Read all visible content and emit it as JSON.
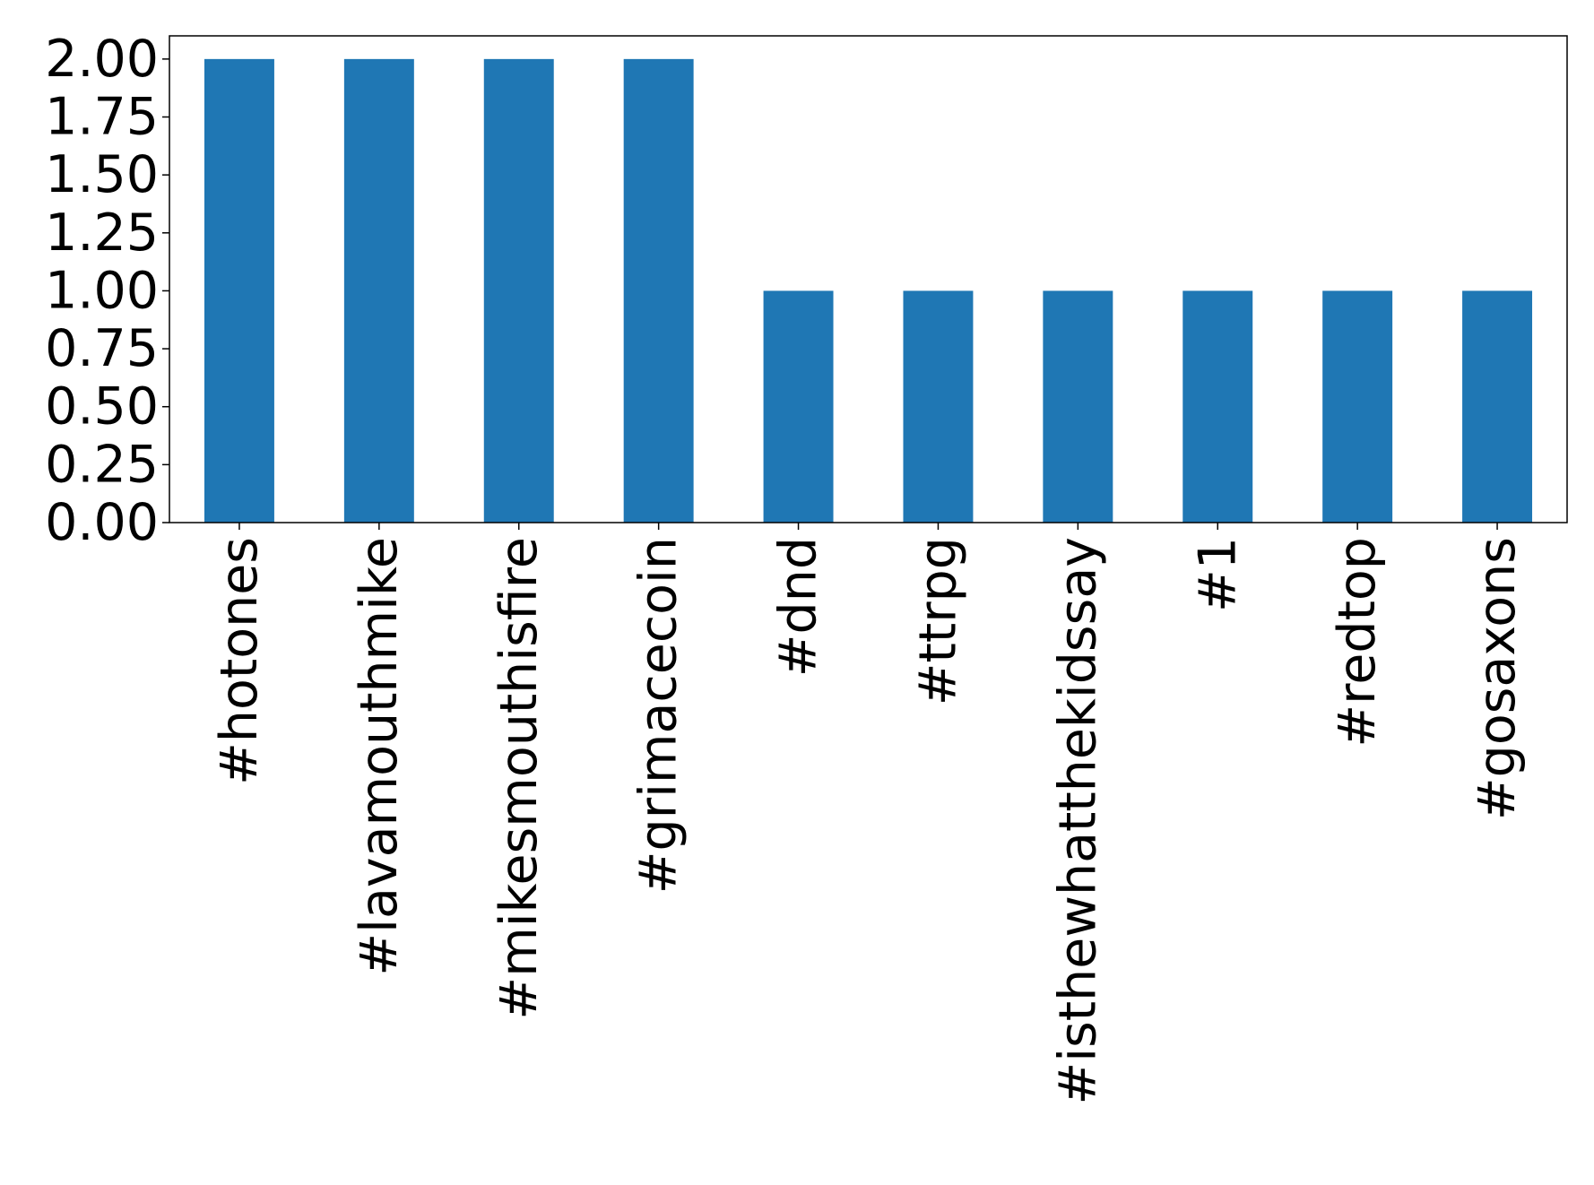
{
  "chart_data": {
    "type": "bar",
    "categories": [
      "#hotones",
      "#lavamouthmike",
      "#mikesmouthisfire",
      "#grimacecoin",
      "#dnd",
      "#ttrpg",
      "#isthewhatthekidssay",
      "#1",
      "#redtop",
      "#gosaxons"
    ],
    "values": [
      2,
      2,
      2,
      2,
      1,
      1,
      1,
      1,
      1,
      1
    ],
    "title": "",
    "xlabel": "",
    "ylabel": "",
    "ylim": [
      0,
      2.1
    ],
    "yticks": [
      "0.00",
      "0.25",
      "0.50",
      "0.75",
      "1.00",
      "1.25",
      "1.50",
      "1.75",
      "2.00"
    ],
    "bar_color": "#1f77b4",
    "grid": false,
    "legend": "none"
  }
}
